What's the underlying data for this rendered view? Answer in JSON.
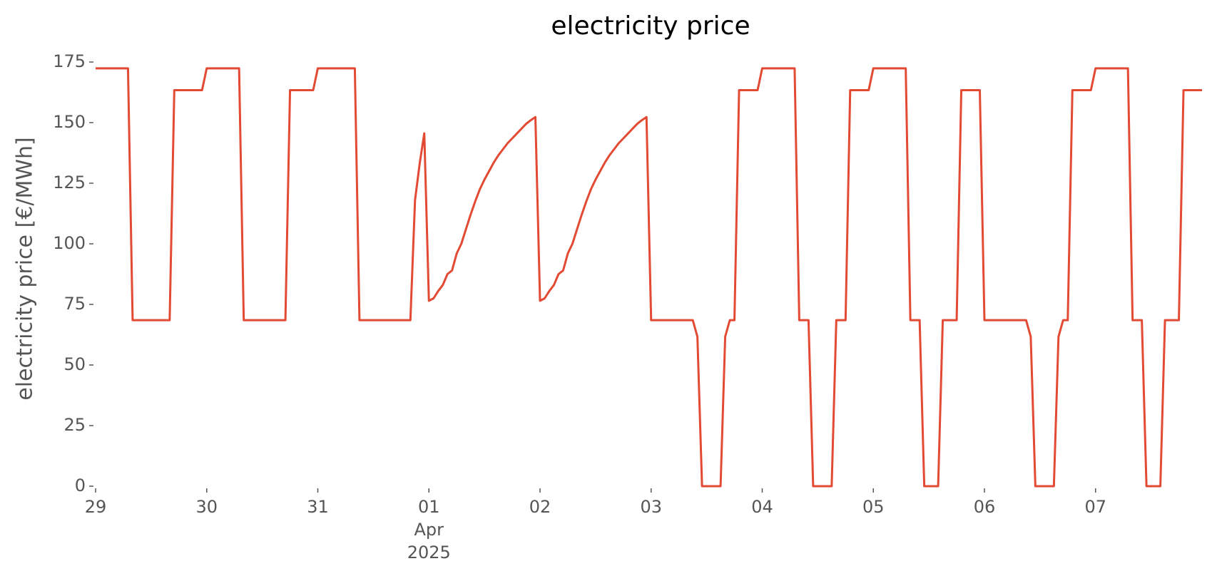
{
  "chart_data": {
    "type": "line",
    "title": "electricity price",
    "ylabel": "electricity price [€/MWh]",
    "color": "#e24a33",
    "grid": false,
    "ylim": [
      0,
      175
    ],
    "yticks": [
      0,
      25,
      50,
      75,
      100,
      125,
      150,
      175
    ],
    "xlim": [
      "2025-03-29T00:00",
      "2025-04-07T23:00"
    ],
    "xticks": [
      {
        "value": "2025-03-29T00:00",
        "label": "29"
      },
      {
        "value": "2025-03-30T00:00",
        "label": "30"
      },
      {
        "value": "2025-03-31T00:00",
        "label": "31"
      },
      {
        "value": "2025-04-01T00:00",
        "label": [
          "01",
          "Apr",
          "2025"
        ]
      },
      {
        "value": "2025-04-02T00:00",
        "label": "02"
      },
      {
        "value": "2025-04-03T00:00",
        "label": "03"
      },
      {
        "value": "2025-04-04T00:00",
        "label": "04"
      },
      {
        "value": "2025-04-05T00:00",
        "label": "05"
      },
      {
        "value": "2025-04-06T00:00",
        "label": "06"
      },
      {
        "value": "2025-04-07T00:00",
        "label": "07"
      }
    ],
    "x": [
      "2025-03-29T00:00",
      "2025-03-29T07:00",
      "2025-03-29T08:00",
      "2025-03-29T16:00",
      "2025-03-29T17:00",
      "2025-03-29T23:00",
      "2025-03-30T00:00",
      "2025-03-30T07:00",
      "2025-03-30T08:00",
      "2025-03-30T17:00",
      "2025-03-30T18:00",
      "2025-03-30T23:00",
      "2025-03-31T00:00",
      "2025-03-31T08:00",
      "2025-03-31T09:00",
      "2025-03-31T20:00",
      "2025-03-31T21:00",
      "2025-03-31T22:00",
      "2025-03-31T23:00",
      "2025-04-01T00:00",
      "2025-04-01T01:00",
      "2025-04-01T02:00",
      "2025-04-01T03:00",
      "2025-04-01T04:00",
      "2025-04-01T05:00",
      "2025-04-01T06:00",
      "2025-04-01T07:00",
      "2025-04-01T08:00",
      "2025-04-01T09:00",
      "2025-04-01T10:00",
      "2025-04-01T11:00",
      "2025-04-01T12:00",
      "2025-04-01T13:00",
      "2025-04-01T14:00",
      "2025-04-01T15:00",
      "2025-04-01T16:00",
      "2025-04-01T17:00",
      "2025-04-01T18:00",
      "2025-04-01T19:00",
      "2025-04-01T20:00",
      "2025-04-01T21:00",
      "2025-04-01T22:00",
      "2025-04-01T23:00",
      "2025-04-02T00:00",
      "2025-04-02T01:00",
      "2025-04-02T02:00",
      "2025-04-02T03:00",
      "2025-04-02T04:00",
      "2025-04-02T05:00",
      "2025-04-02T06:00",
      "2025-04-02T07:00",
      "2025-04-02T08:00",
      "2025-04-02T09:00",
      "2025-04-02T10:00",
      "2025-04-02T11:00",
      "2025-04-02T12:00",
      "2025-04-02T13:00",
      "2025-04-02T14:00",
      "2025-04-02T15:00",
      "2025-04-02T16:00",
      "2025-04-02T17:00",
      "2025-04-02T18:00",
      "2025-04-02T19:00",
      "2025-04-02T20:00",
      "2025-04-02T21:00",
      "2025-04-02T22:00",
      "2025-04-02T23:00",
      "2025-04-03T00:00",
      "2025-04-03T09:00",
      "2025-04-03T10:00",
      "2025-04-03T11:00",
      "2025-04-03T15:00",
      "2025-04-03T16:00",
      "2025-04-03T17:00",
      "2025-04-03T18:00",
      "2025-04-03T19:00",
      "2025-04-03T23:00",
      "2025-04-04T00:00",
      "2025-04-04T07:00",
      "2025-04-04T08:00",
      "2025-04-04T10:00",
      "2025-04-04T11:00",
      "2025-04-04T15:00",
      "2025-04-04T16:00",
      "2025-04-04T18:00",
      "2025-04-04T19:00",
      "2025-04-04T23:00",
      "2025-04-05T00:00",
      "2025-04-05T07:00",
      "2025-04-05T08:00",
      "2025-04-05T10:00",
      "2025-04-05T11:00",
      "2025-04-05T14:00",
      "2025-04-05T15:00",
      "2025-04-05T18:00",
      "2025-04-05T19:00",
      "2025-04-05T23:00",
      "2025-04-06T00:00",
      "2025-04-06T09:00",
      "2025-04-06T10:00",
      "2025-04-06T11:00",
      "2025-04-06T15:00",
      "2025-04-06T16:00",
      "2025-04-06T17:00",
      "2025-04-06T18:00",
      "2025-04-06T19:00",
      "2025-04-06T23:00",
      "2025-04-07T00:00",
      "2025-04-07T07:00",
      "2025-04-07T08:00",
      "2025-04-07T10:00",
      "2025-04-07T11:00",
      "2025-04-07T14:00",
      "2025-04-07T15:00",
      "2025-04-07T18:00",
      "2025-04-07T19:00",
      "2025-04-07T23:00"
    ],
    "values": [
      172.4,
      172.4,
      68.5,
      68.5,
      163.4,
      163.4,
      172.4,
      172.4,
      68.5,
      68.5,
      163.4,
      163.4,
      172.4,
      172.4,
      68.5,
      68.5,
      118,
      133,
      145.6,
      76.5,
      77.5,
      80.5,
      83,
      87.5,
      89,
      96,
      100,
      106,
      112,
      117.5,
      122.5,
      126.5,
      130,
      133.5,
      136.5,
      139,
      141.5,
      143.5,
      145.5,
      147.5,
      149.5,
      151,
      152.3,
      76.5,
      77.5,
      80.5,
      83,
      87.5,
      89,
      96,
      100,
      106,
      112,
      117.5,
      122.5,
      126.5,
      130,
      133.5,
      136.5,
      139,
      141.5,
      143.5,
      145.5,
      147.5,
      149.5,
      151,
      152.3,
      68.5,
      68.5,
      61.7,
      0,
      0,
      61.7,
      68.5,
      68.5,
      163.4,
      163.4,
      172.4,
      172.4,
      68.5,
      68.5,
      0,
      0,
      68.5,
      68.5,
      163.4,
      163.4,
      172.4,
      172.4,
      68.5,
      68.5,
      0,
      0,
      68.5,
      68.5,
      163.4,
      163.4,
      68.5,
      68.5,
      61.7,
      0,
      0,
      61.7,
      68.5,
      68.5,
      163.4,
      163.4,
      172.4,
      172.4,
      68.5,
      68.5,
      0,
      0,
      68.5,
      68.5,
      163.4,
      163.4
    ]
  }
}
